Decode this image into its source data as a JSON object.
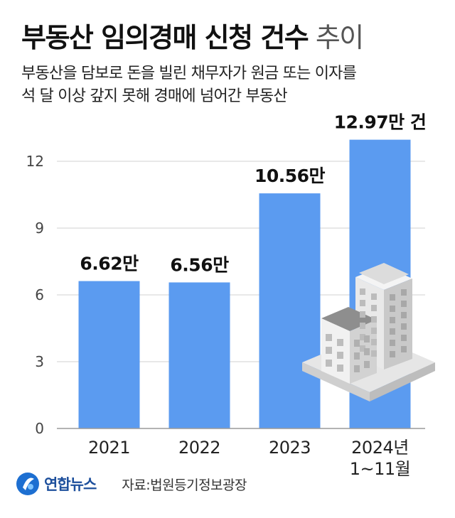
{
  "title": {
    "main": "부동산 임의경매 신청 건수",
    "suffix": " 추이"
  },
  "subtitle": {
    "line1": "부동산을 담보로 돈을 빌린 채무자가 원금 또는 이자를",
    "line2": "석 달 이상 갚지 못해 경매에 넘어간 부동산"
  },
  "footer": {
    "logo": "연합뉴스",
    "source": "자료:법원등기정보광장"
  },
  "colors": {
    "bar": "#5b9bf0",
    "grid": "#d0d0d0",
    "axis": "#9a9a9a",
    "tick": "#444444"
  },
  "chart_data": {
    "type": "bar",
    "categories": [
      "2021",
      "2022",
      "2023",
      "2024년\n1~11월"
    ],
    "values": [
      6.62,
      6.56,
      10.56,
      12.97
    ],
    "data_labels": [
      "6.62만",
      "6.56만",
      "10.56만",
      "12.97만 건"
    ],
    "yticks": [
      0,
      3,
      6,
      9,
      12
    ],
    "ylim": [
      0,
      13.5
    ],
    "grid": true,
    "title": "부동산 임의경매 신청 건수 추이",
    "xlabel": "",
    "ylabel": ""
  }
}
